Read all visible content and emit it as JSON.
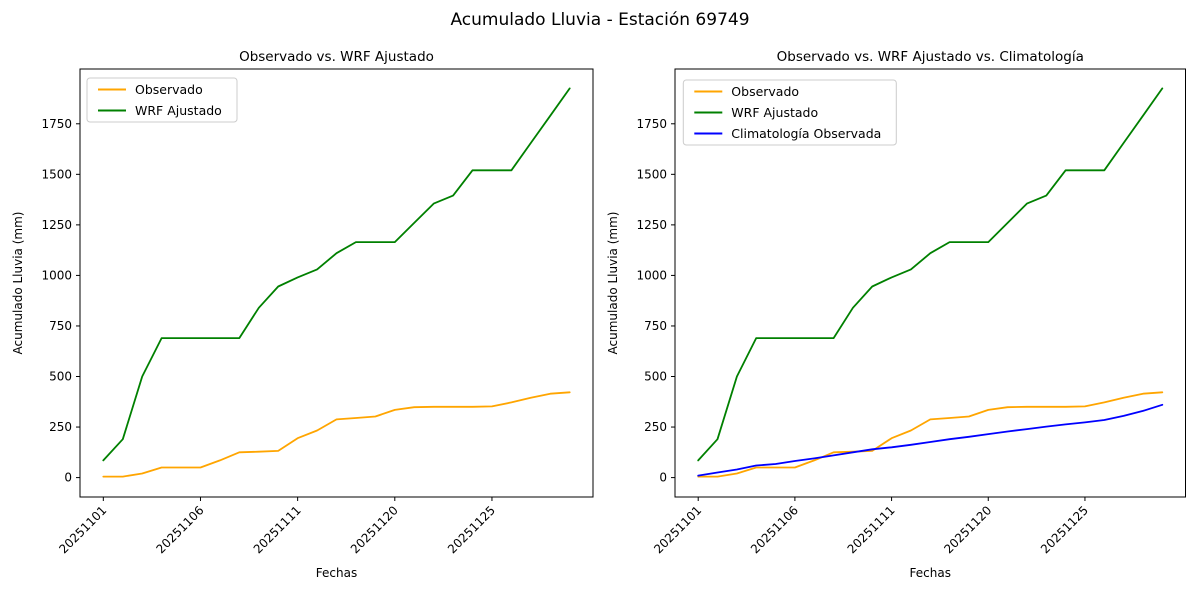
{
  "figure": {
    "suptitle": "Acumulado Lluvia - Estación 69749",
    "background_color": "#ffffff",
    "text_color": "#000000"
  },
  "axes": {
    "xlabel": "Fechas",
    "ylabel": "Acumulado Lluvia (mm)",
    "yticks": [
      0,
      250,
      500,
      750,
      1000,
      1250,
      1500,
      1750
    ],
    "xtick_indices": [
      0,
      5,
      10,
      15,
      20
    ],
    "xtick_labels": [
      "20251101",
      "20251106",
      "20251111",
      "20251120",
      "20251125"
    ],
    "xtick_rotation_deg": 45
  },
  "chart_data": [
    {
      "type": "line",
      "title": "Observado vs. WRF Ajustado",
      "xlabel": "Fechas",
      "ylabel": "Acumulado Lluvia (mm)",
      "legend_position": "upper left",
      "grid": false,
      "ylim": [
        -96,
        2021
      ],
      "x": [
        "20251101",
        "20251102",
        "20251103",
        "20251104",
        "20251105",
        "20251106",
        "20251107",
        "20251108",
        "20251109",
        "20251110",
        "20251111",
        "20251116",
        "20251117",
        "20251118",
        "20251119",
        "20251120",
        "20251121",
        "20251122",
        "20251123",
        "20251124",
        "20251125",
        "20251126",
        "20251127",
        "20251128",
        "20251129"
      ],
      "series": [
        {
          "name": "Observado",
          "color": "#FFA500",
          "values": [
            5,
            5,
            20,
            50,
            50,
            50,
            85,
            125,
            128,
            132,
            195,
            233,
            288,
            295,
            302,
            335,
            348,
            350,
            350,
            350,
            352,
            372,
            395,
            415,
            422
          ]
        },
        {
          "name": "WRF Ajustado",
          "color": "#008000",
          "values": [
            85,
            190,
            500,
            690,
            690,
            690,
            690,
            690,
            840,
            945,
            990,
            1030,
            1110,
            1165,
            1165,
            1165,
            1260,
            1355,
            1395,
            1520,
            1520,
            1520,
            1655,
            1790,
            1925
          ]
        }
      ]
    },
    {
      "type": "line",
      "title": "Observado vs. WRF Ajustado vs. Climatología",
      "xlabel": "Fechas",
      "ylabel": "Acumulado Lluvia (mm)",
      "legend_position": "upper left",
      "grid": false,
      "ylim": [
        -96,
        2021
      ],
      "x": [
        "20251101",
        "20251102",
        "20251103",
        "20251104",
        "20251105",
        "20251106",
        "20251107",
        "20251108",
        "20251109",
        "20251110",
        "20251111",
        "20251116",
        "20251117",
        "20251118",
        "20251119",
        "20251120",
        "20251121",
        "20251122",
        "20251123",
        "20251124",
        "20251125",
        "20251126",
        "20251127",
        "20251128",
        "20251129"
      ],
      "series": [
        {
          "name": "Observado",
          "color": "#FFA500",
          "values": [
            5,
            5,
            20,
            50,
            50,
            50,
            85,
            125,
            128,
            132,
            195,
            233,
            288,
            295,
            302,
            335,
            348,
            350,
            350,
            350,
            352,
            372,
            395,
            415,
            422
          ]
        },
        {
          "name": "WRF Ajustado",
          "color": "#008000",
          "values": [
            85,
            190,
            500,
            690,
            690,
            690,
            690,
            690,
            840,
            945,
            990,
            1030,
            1110,
            1165,
            1165,
            1165,
            1260,
            1355,
            1395,
            1520,
            1520,
            1520,
            1655,
            1790,
            1925
          ]
        },
        {
          "name": "Climatología Observada",
          "color": "#0000FF",
          "values": [
            10,
            25,
            40,
            60,
            67,
            82,
            95,
            110,
            125,
            140,
            150,
            162,
            176,
            190,
            202,
            215,
            228,
            240,
            252,
            263,
            273,
            285,
            305,
            330,
            360
          ]
        }
      ]
    }
  ]
}
